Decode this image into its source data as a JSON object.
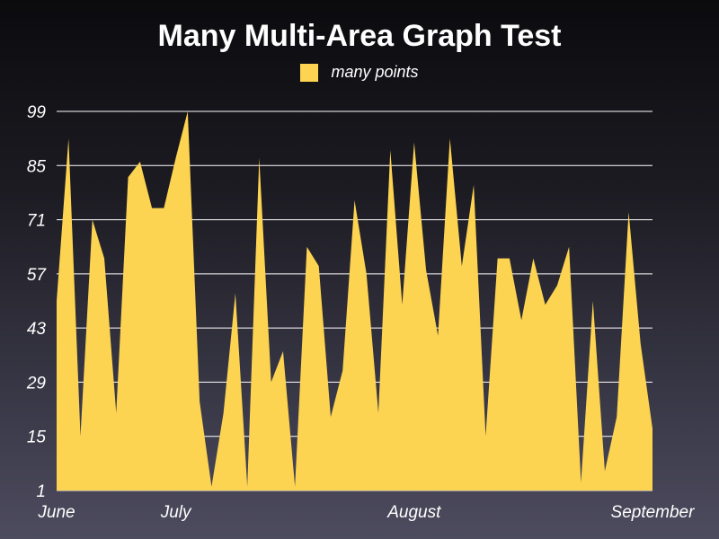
{
  "colors": {
    "area": "#fdd451",
    "grid": "#ffffff",
    "text": "#ffffff"
  },
  "chart_data": {
    "type": "area",
    "title": "Many Multi-Area Graph Test",
    "xlabel": "",
    "ylabel": "",
    "legend_position": "top-center",
    "grid": true,
    "y_ticks": [
      1,
      15,
      29,
      43,
      57,
      71,
      85,
      99
    ],
    "ylim": [
      1,
      99
    ],
    "x_ticks": [
      {
        "label": "June",
        "index": 0
      },
      {
        "label": "July",
        "index": 10
      },
      {
        "label": "August",
        "index": 30
      },
      {
        "label": "September",
        "index": 50
      }
    ],
    "series": [
      {
        "name": "many points",
        "values": [
          50,
          92,
          15,
          71,
          61,
          21,
          82,
          86,
          74,
          74,
          87,
          99,
          24,
          2,
          21,
          52,
          2,
          87,
          29,
          37,
          2,
          64,
          59,
          20,
          32,
          76,
          57,
          21,
          89,
          49,
          91,
          58,
          41,
          92,
          59,
          80,
          15,
          61,
          61,
          45,
          61,
          49,
          54,
          64,
          3,
          50,
          6,
          20,
          73,
          39,
          17
        ]
      }
    ]
  }
}
